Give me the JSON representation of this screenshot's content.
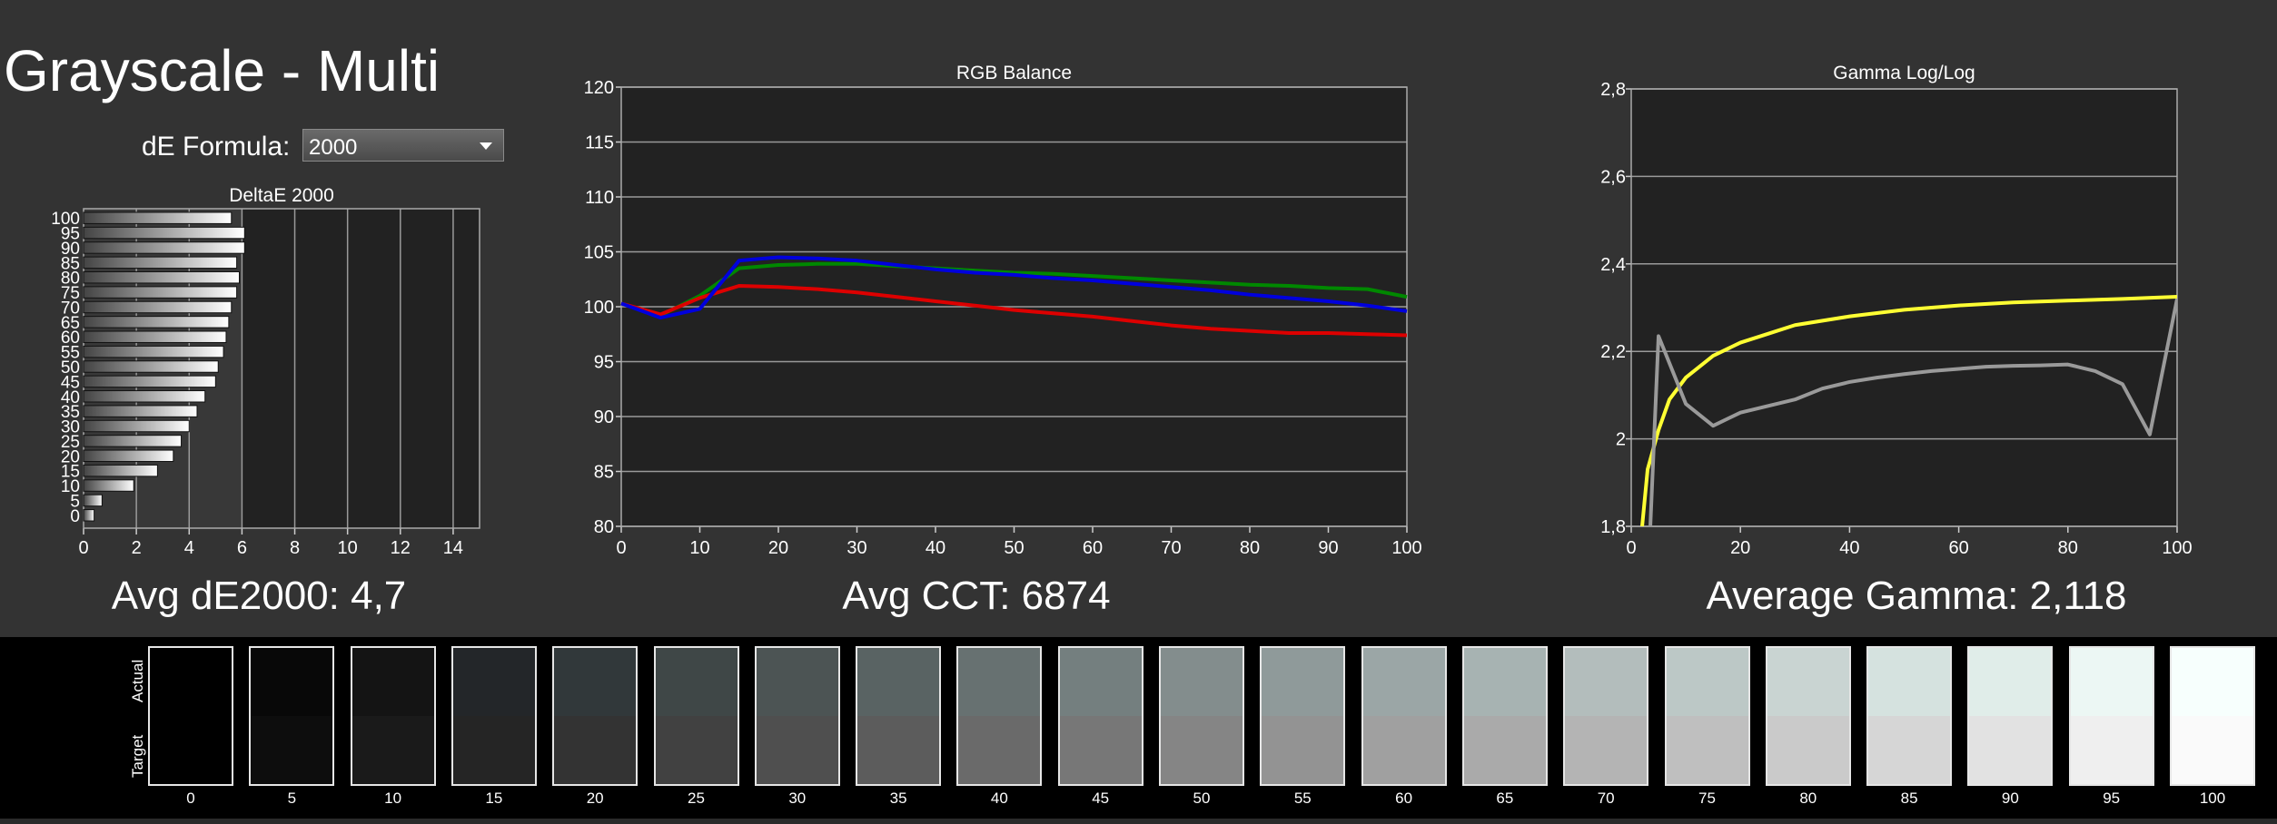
{
  "page": {
    "title": "Grayscale - Multi",
    "formula_label": "dE Formula:",
    "formula_value": "2000",
    "stats": {
      "avg_de": "Avg dE2000: 4,7",
      "avg_cct": "Avg CCT: 6874",
      "avg_gamma": "Average Gamma: 2,118"
    }
  },
  "chart_data": [
    {
      "type": "bar",
      "orientation": "horizontal",
      "title": "DeltaE 2000",
      "categories": [
        0,
        5,
        10,
        15,
        20,
        25,
        30,
        35,
        40,
        45,
        50,
        55,
        60,
        65,
        70,
        75,
        80,
        85,
        90,
        95,
        100
      ],
      "y_tick_labels": [
        "0",
        "5",
        "10",
        "15",
        "20",
        "25",
        "30",
        "35",
        "40",
        "45",
        "50",
        "55",
        "60",
        "65",
        "70",
        "75",
        "80",
        "85",
        "90",
        "95",
        "100"
      ],
      "values": [
        0.4,
        0.7,
        1.9,
        2.8,
        3.4,
        3.7,
        4.0,
        4.3,
        4.6,
        5.0,
        5.1,
        5.3,
        5.4,
        5.5,
        5.6,
        5.8,
        5.9,
        5.8,
        6.1,
        6.1,
        5.6
      ],
      "xlim": [
        0,
        15
      ],
      "x_ticks": [
        0,
        2,
        4,
        6,
        8,
        10,
        12,
        14
      ],
      "x_tick_labels": [
        "0",
        "2",
        "4",
        "6",
        "8",
        "10",
        "12",
        "14"
      ],
      "colors": {
        "bar_fill": "#ffffff",
        "bar_stroke": "#111111",
        "plot_bg": "#222222",
        "band_bg": "#383838",
        "grid": "#9a9a9a"
      }
    },
    {
      "type": "line",
      "title": "RGB Balance",
      "x": [
        0,
        5,
        10,
        15,
        20,
        25,
        30,
        35,
        40,
        45,
        50,
        55,
        60,
        65,
        70,
        75,
        80,
        85,
        90,
        95,
        100
      ],
      "xlim": [
        0,
        100
      ],
      "x_ticks": [
        0,
        10,
        20,
        30,
        40,
        50,
        60,
        70,
        80,
        90,
        100
      ],
      "x_tick_labels": [
        "0",
        "10",
        "20",
        "30",
        "40",
        "50",
        "60",
        "70",
        "80",
        "90",
        "100"
      ],
      "ylim": [
        80,
        120
      ],
      "y_ticks": [
        80,
        85,
        90,
        95,
        100,
        105,
        110,
        115,
        120
      ],
      "y_tick_labels": [
        "80",
        "85",
        "90",
        "95",
        "100",
        "105",
        "110",
        "115",
        "120"
      ],
      "series": [
        {
          "color": "#008800",
          "values": [
            100.3,
            99.2,
            101.0,
            103.5,
            103.8,
            103.9,
            103.9,
            103.7,
            103.5,
            103.3,
            103.1,
            103.0,
            102.8,
            102.6,
            102.4,
            102.2,
            102.0,
            101.9,
            101.7,
            101.6,
            100.9
          ]
        },
        {
          "color": "#dd0000",
          "values": [
            100.3,
            99.3,
            100.8,
            101.9,
            101.8,
            101.6,
            101.3,
            100.9,
            100.5,
            100.1,
            99.7,
            99.4,
            99.1,
            98.7,
            98.3,
            98.0,
            97.8,
            97.6,
            97.6,
            97.5,
            97.4
          ]
        },
        {
          "color": "#0000dd",
          "values": [
            100.3,
            99.0,
            99.8,
            104.2,
            104.5,
            104.4,
            104.2,
            103.8,
            103.4,
            103.1,
            102.9,
            102.6,
            102.4,
            102.1,
            101.8,
            101.5,
            101.1,
            100.8,
            100.5,
            100.1,
            99.6
          ]
        }
      ],
      "colors": {
        "plot_bg": "#222222",
        "grid": "#9a9a9a"
      }
    },
    {
      "type": "line",
      "title": "Gamma Log/Log",
      "xlim": [
        0,
        100
      ],
      "x_ticks": [
        0,
        20,
        40,
        60,
        80,
        100
      ],
      "x_tick_labels": [
        "0",
        "20",
        "40",
        "60",
        "80",
        "100"
      ],
      "ylim": [
        1.8,
        2.8
      ],
      "y_ticks": [
        1.8,
        2.0,
        2.2,
        2.4,
        2.6,
        2.8
      ],
      "y_tick_labels": [
        "1,8",
        "2",
        "2,2",
        "2,4",
        "2,6",
        "2,8"
      ],
      "series": [
        {
          "color": "#ffff33",
          "x": [
            2,
            3,
            5,
            7,
            10,
            15,
            20,
            25,
            30,
            40,
            50,
            60,
            70,
            80,
            90,
            100
          ],
          "values": [
            1.8,
            1.93,
            2.02,
            2.09,
            2.14,
            2.19,
            2.22,
            2.24,
            2.26,
            2.28,
            2.295,
            2.305,
            2.312,
            2.316,
            2.32,
            2.325
          ]
        },
        {
          "color": "#9a9a9a",
          "x": [
            3.5,
            5,
            10,
            15,
            20,
            25,
            30,
            35,
            40,
            45,
            50,
            55,
            60,
            65,
            70,
            75,
            80,
            85,
            90,
            95,
            100
          ],
          "values": [
            1.8,
            2.235,
            2.08,
            2.03,
            2.06,
            2.075,
            2.09,
            2.115,
            2.13,
            2.14,
            2.148,
            2.155,
            2.16,
            2.165,
            2.167,
            2.168,
            2.17,
            2.155,
            2.125,
            2.01,
            2.32
          ]
        }
      ],
      "colors": {
        "plot_bg": "#222222",
        "grid": "#9a9a9a"
      }
    },
    {
      "type": "swatches",
      "row_labels": {
        "actual": "Actual",
        "target": "Target"
      },
      "labels": [
        "0",
        "5",
        "10",
        "15",
        "20",
        "25",
        "30",
        "35",
        "40",
        "45",
        "50",
        "55",
        "60",
        "65",
        "70",
        "75",
        "80",
        "85",
        "90",
        "95",
        "100"
      ],
      "actual_colors": [
        "#000000",
        "#080808",
        "#141414",
        "#232629",
        "#31383a",
        "#3f4747",
        "#4c5454",
        "#596363",
        "#677171",
        "#747f7f",
        "#838d8d",
        "#8f9a9a",
        "#9ba6a6",
        "#a7b3b2",
        "#b3bdbc",
        "#bcc8c6",
        "#c9d4d2",
        "#d5e2df",
        "#e0ede9",
        "#ecf7f4",
        "#f7fffd"
      ],
      "target_colors": [
        "#000000",
        "#0d0d0d",
        "#1a1a1a",
        "#252525",
        "#333333",
        "#414141",
        "#4f4f4f",
        "#5c5c5c",
        "#6a6a6a",
        "#777777",
        "#858585",
        "#939393",
        "#a0a0a0",
        "#aaaaaa",
        "#b4b4b4",
        "#bfbfbf",
        "#cacaca",
        "#d6d6d6",
        "#e2e2e2",
        "#efefef",
        "#fafafa"
      ]
    }
  ]
}
